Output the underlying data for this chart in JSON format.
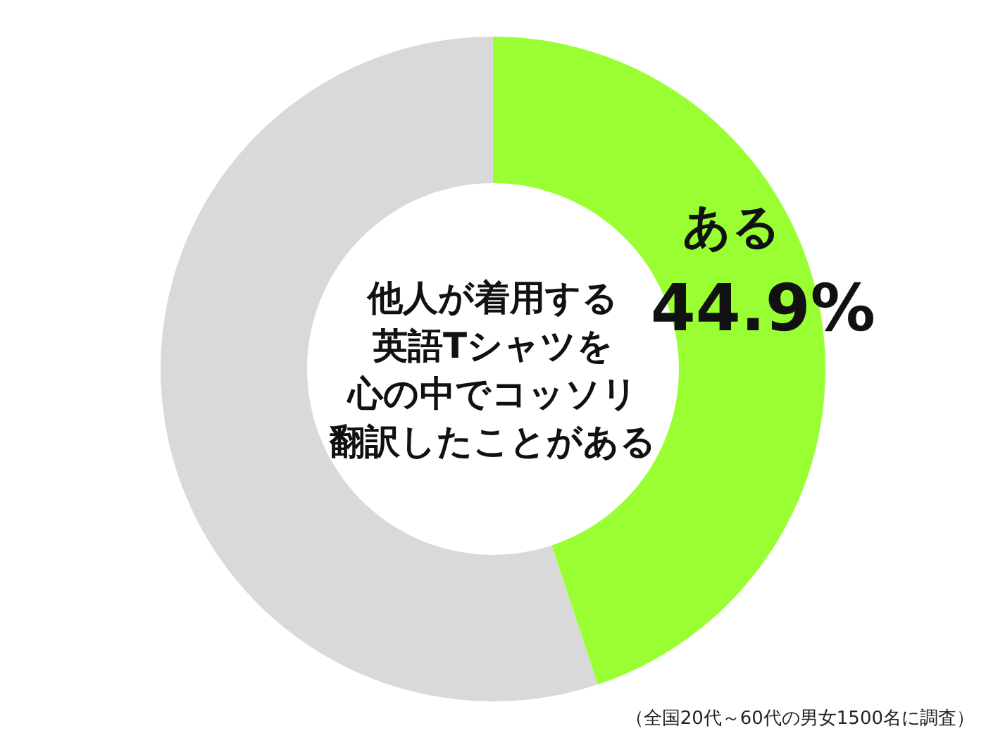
{
  "chart_data": {
    "type": "donut",
    "title": "他人が着用する英語Tシャツを心の中でコッソリ翻訳したことがある",
    "categories": [
      "ある",
      null
    ],
    "values": [
      44.9,
      55.1
    ],
    "colors": [
      "#99ff33",
      "#d9d9d9"
    ],
    "value_labels": [
      "44.9%",
      null
    ],
    "annotations": [
      "（全国20代～60代の男女1500名に調査）"
    ],
    "legend": false
  }
}
